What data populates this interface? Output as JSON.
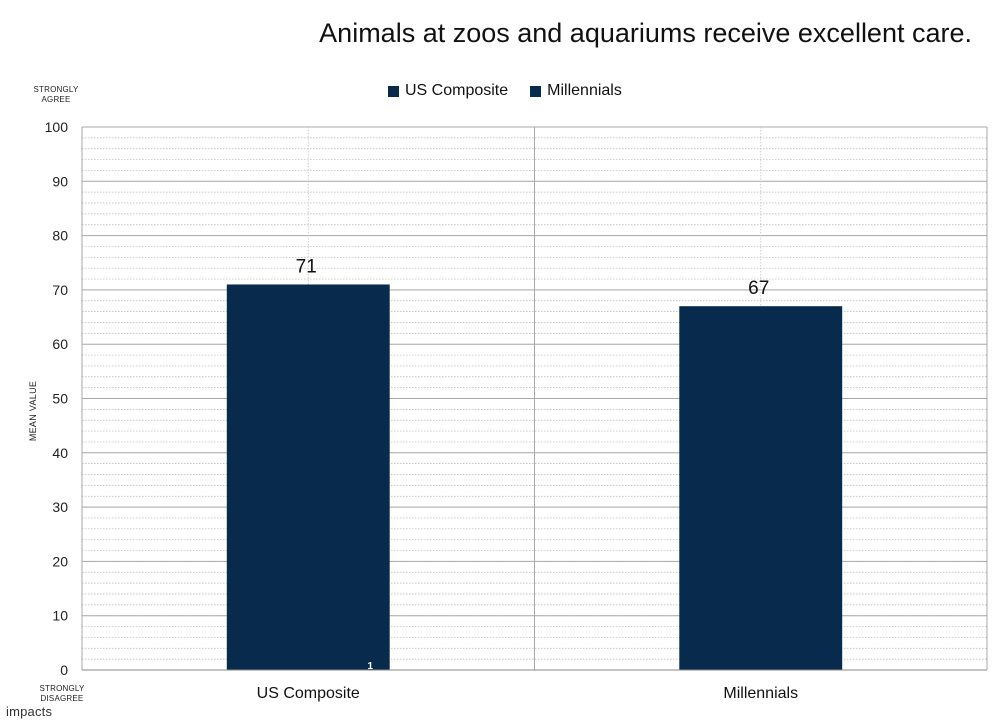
{
  "chart_data": {
    "type": "bar",
    "title": "Animals at zoos and aquariums receive excellent care.",
    "ylabel": "MEAN VALUE",
    "ylim": [
      0,
      100
    ],
    "yticks": [
      0,
      10,
      20,
      30,
      40,
      50,
      60,
      70,
      80,
      90,
      100
    ],
    "categories": [
      "US Composite",
      "Millennials"
    ],
    "values": [
      71,
      67
    ],
    "data_labels": [
      "71",
      "67"
    ],
    "inner_note": "1",
    "bar_color": "#072a4d",
    "grid": true,
    "legend": {
      "placement": "top-center",
      "entries": [
        "US Composite",
        "Millennials"
      ]
    },
    "scale_top_label": "STRONGLY AGREE",
    "scale_bottom_label": "STRONGLY DISAGREE"
  },
  "footer": {
    "logo_text": "impacts"
  }
}
